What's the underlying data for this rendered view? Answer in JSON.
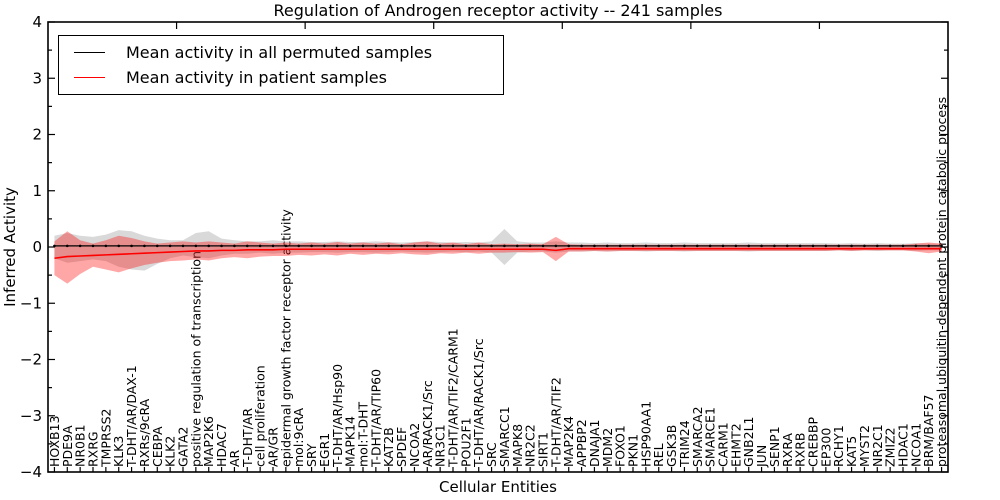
{
  "title": "Regulation of Androgen receptor activity -- 241 samples",
  "legend": {
    "items": [
      {
        "label": "Mean activity in all permuted samples",
        "color": "#000000"
      },
      {
        "label": "Mean activity in patient samples",
        "color": "#ff0000"
      }
    ]
  },
  "chart_data": {
    "type": "line",
    "title": "Regulation of Androgen receptor activity -- 241 samples",
    "xlabel": "Cellular Entities",
    "ylabel": "Inferred Activity",
    "ylim": [
      -4,
      4
    ],
    "yticks": [
      -4,
      -3,
      -2,
      -1,
      0,
      1,
      2,
      3,
      4
    ],
    "y_minor_step": 0.5,
    "x_major_tick_interval": 10,
    "grid": false,
    "legend_position": "upper left",
    "sample_count_in_title": 241,
    "categories": [
      "HOXB13",
      "PDE9A",
      "NR0B1",
      "RXRG",
      "TMPRSS2",
      "KLK3",
      "T-DHT/AR/DAX-1",
      "RXRs/9cRA",
      "CEBPA",
      "KLK2",
      "GATA2",
      "positive regulation of transcription",
      "MAP2K6",
      "HDAC7",
      "AR",
      "T-DHT/AR",
      "cell proliferation",
      "AR/GR",
      "epidermal growth factor receptor activity",
      "mol:9cRA",
      "SRY",
      "EGR1",
      "T-DHT/AR/Hsp90",
      "MAPK14",
      "mol:T-DHT",
      "T-DHT/AR/TIP60",
      "KAT2B",
      "SPDEF",
      "NCOA2",
      "AR/RACK1/Src",
      "NR3C1",
      "T-DHT/AR/TIF2/CARM1",
      "POU2F1",
      "T-DHT/AR/RACK1/Src",
      "SRC",
      "SMARCC1",
      "MAPK8",
      "NR2C2",
      "SIRT1",
      "T-DHT/AR/TIF2",
      "MAP2K4",
      "APPBP2",
      "DNAJA1",
      "MDM2",
      "FOXO1",
      "PKN1",
      "HSP90AA1",
      "REL",
      "GSK3B",
      "TRIM24",
      "SMARCA2",
      "SMARCE1",
      "CARM1",
      "EHMT2",
      "GNB2L1",
      "JUN",
      "SENP1",
      "RXRA",
      "RXRB",
      "CREBBP",
      "EP300",
      "RCHY1",
      "KAT5",
      "MYST2",
      "NR2C1",
      "ZMIZ2",
      "HDAC1",
      "NCOA1",
      "BRM/BAF57",
      "proteasomal ubiquitin-dependent protein catabolic process"
    ],
    "series": [
      {
        "name": "Mean activity in all permuted samples",
        "color": "#000000",
        "marker": "dot",
        "band_color": "#808080",
        "band_opacity": 0.3,
        "values": [
          0.02,
          0.02,
          0.02,
          0.02,
          0.02,
          0.02,
          0.02,
          0.02,
          0.02,
          0.02,
          0.02,
          0.02,
          0.02,
          0.02,
          0.02,
          0.02,
          0.02,
          0.02,
          0.02,
          0.02,
          0.02,
          0.02,
          0.02,
          0.02,
          0.02,
          0.02,
          0.02,
          0.02,
          0.02,
          0.02,
          0.02,
          0.02,
          0.02,
          0.02,
          0.02,
          0.02,
          0.02,
          0.02,
          0.02,
          0.02,
          0.02,
          0.02,
          0.02,
          0.02,
          0.02,
          0.02,
          0.02,
          0.02,
          0.02,
          0.02,
          0.02,
          0.02,
          0.02,
          0.02,
          0.02,
          0.02,
          0.02,
          0.02,
          0.02,
          0.02,
          0.02,
          0.02,
          0.02,
          0.02,
          0.02,
          0.02,
          0.02,
          0.02,
          0.02,
          0.02
        ],
        "band_upper": [
          0.2,
          0.25,
          0.2,
          0.18,
          0.22,
          0.3,
          0.28,
          0.2,
          0.15,
          0.12,
          0.12,
          0.25,
          0.28,
          0.15,
          0.12,
          0.1,
          0.1,
          0.12,
          0.1,
          0.1,
          0.09,
          0.09,
          0.1,
          0.09,
          0.09,
          0.1,
          0.09,
          0.08,
          0.09,
          0.1,
          0.09,
          0.08,
          0.09,
          0.08,
          0.1,
          0.32,
          0.1,
          0.08,
          0.08,
          0.1,
          0.08,
          0.08,
          0.07,
          0.08,
          0.07,
          0.07,
          0.08,
          0.07,
          0.07,
          0.08,
          0.07,
          0.07,
          0.07,
          0.07,
          0.08,
          0.07,
          0.07,
          0.07,
          0.07,
          0.07,
          0.07,
          0.06,
          0.07,
          0.06,
          0.07,
          0.06,
          0.06,
          0.07,
          0.06,
          0.06
        ],
        "band_lower": [
          -0.2,
          -0.28,
          -0.25,
          -0.22,
          -0.25,
          -0.35,
          -0.4,
          -0.42,
          -0.3,
          -0.2,
          -0.15,
          -0.18,
          -0.2,
          -0.15,
          -0.12,
          -0.12,
          -0.1,
          -0.12,
          -0.1,
          -0.1,
          -0.09,
          -0.09,
          -0.1,
          -0.09,
          -0.09,
          -0.1,
          -0.09,
          -0.08,
          -0.09,
          -0.1,
          -0.09,
          -0.08,
          -0.09,
          -0.08,
          -0.1,
          -0.32,
          -0.1,
          -0.08,
          -0.08,
          -0.1,
          -0.08,
          -0.08,
          -0.07,
          -0.08,
          -0.07,
          -0.07,
          -0.08,
          -0.07,
          -0.07,
          -0.08,
          -0.07,
          -0.07,
          -0.07,
          -0.07,
          -0.08,
          -0.07,
          -0.07,
          -0.07,
          -0.07,
          -0.07,
          -0.07,
          -0.06,
          -0.07,
          -0.06,
          -0.07,
          -0.06,
          -0.06,
          -0.07,
          -0.06,
          -0.06
        ]
      },
      {
        "name": "Mean activity in patient samples",
        "color": "#ff0000",
        "marker": "none",
        "band_color": "#ff0000",
        "band_opacity": 0.35,
        "values": [
          -0.2,
          -0.17,
          -0.16,
          -0.15,
          -0.14,
          -0.13,
          -0.12,
          -0.11,
          -0.1,
          -0.09,
          -0.08,
          -0.07,
          -0.07,
          -0.06,
          -0.06,
          -0.05,
          -0.05,
          -0.05,
          -0.04,
          -0.04,
          -0.04,
          -0.04,
          -0.04,
          -0.04,
          -0.04,
          -0.04,
          -0.04,
          -0.04,
          -0.04,
          -0.04,
          -0.04,
          -0.04,
          -0.04,
          -0.04,
          -0.04,
          -0.04,
          -0.04,
          -0.04,
          -0.04,
          -0.06,
          -0.03,
          -0.03,
          -0.03,
          -0.03,
          -0.03,
          -0.03,
          -0.03,
          -0.03,
          -0.03,
          -0.03,
          -0.03,
          -0.03,
          -0.03,
          -0.03,
          -0.03,
          -0.03,
          -0.03,
          -0.03,
          -0.03,
          -0.03,
          -0.03,
          -0.03,
          -0.03,
          -0.03,
          -0.03,
          -0.03,
          -0.03,
          -0.03,
          -0.03,
          -0.03
        ],
        "band_upper": [
          0.1,
          0.28,
          0.12,
          0.06,
          0.12,
          0.2,
          0.16,
          0.1,
          0.06,
          0.08,
          0.1,
          0.08,
          0.1,
          0.08,
          0.06,
          0.1,
          0.08,
          0.06,
          0.08,
          0.06,
          0.08,
          0.06,
          0.09,
          0.06,
          0.08,
          0.06,
          0.08,
          0.05,
          0.08,
          0.1,
          0.06,
          0.08,
          0.05,
          0.08,
          0.05,
          0.06,
          0.05,
          0.06,
          0.05,
          0.18,
          0.05,
          0.04,
          0.04,
          0.04,
          0.04,
          0.04,
          0.04,
          0.04,
          0.04,
          0.04,
          0.04,
          0.04,
          0.04,
          0.04,
          0.04,
          0.04,
          0.04,
          0.04,
          0.04,
          0.04,
          0.04,
          0.04,
          0.04,
          0.04,
          0.04,
          0.04,
          0.04,
          0.06,
          0.08,
          0.06
        ],
        "band_lower": [
          -0.5,
          -0.65,
          -0.48,
          -0.35,
          -0.4,
          -0.45,
          -0.38,
          -0.32,
          -0.28,
          -0.25,
          -0.24,
          -0.22,
          -0.24,
          -0.2,
          -0.18,
          -0.2,
          -0.17,
          -0.16,
          -0.16,
          -0.14,
          -0.15,
          -0.13,
          -0.15,
          -0.12,
          -0.14,
          -0.12,
          -0.13,
          -0.11,
          -0.13,
          -0.14,
          -0.11,
          -0.12,
          -0.1,
          -0.12,
          -0.1,
          -0.1,
          -0.09,
          -0.1,
          -0.09,
          -0.25,
          -0.08,
          -0.08,
          -0.07,
          -0.08,
          -0.07,
          -0.07,
          -0.07,
          -0.07,
          -0.07,
          -0.07,
          -0.07,
          -0.07,
          -0.07,
          -0.07,
          -0.07,
          -0.07,
          -0.07,
          -0.07,
          -0.07,
          -0.07,
          -0.07,
          -0.06,
          -0.07,
          -0.06,
          -0.06,
          -0.06,
          -0.06,
          -0.08,
          -0.11,
          -0.08
        ]
      }
    ]
  }
}
